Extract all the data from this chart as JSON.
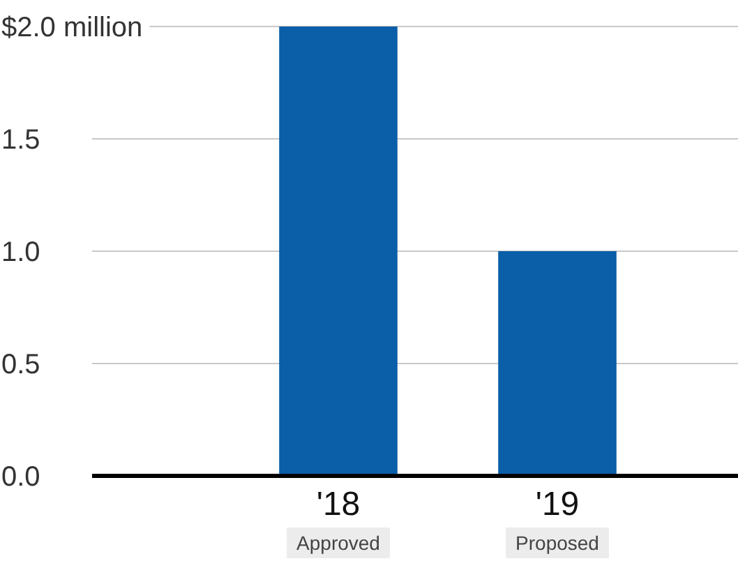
{
  "chart_data": {
    "type": "bar",
    "categories": [
      "'18",
      "'19"
    ],
    "values": [
      2.0,
      1.0
    ],
    "color": "#0b5ea8",
    "ylim": [
      0,
      2
    ],
    "yticks": [
      {
        "value": 0,
        "label": "0.0"
      },
      {
        "value": 0.5,
        "label": "0.5"
      },
      {
        "value": 1,
        "label": "1.0"
      },
      {
        "value": 1.5,
        "label": "1.5"
      },
      {
        "value": 2,
        "label": "$2.0 million"
      }
    ],
    "grid": "y",
    "annotations": [
      "Approved",
      "Proposed"
    ]
  }
}
